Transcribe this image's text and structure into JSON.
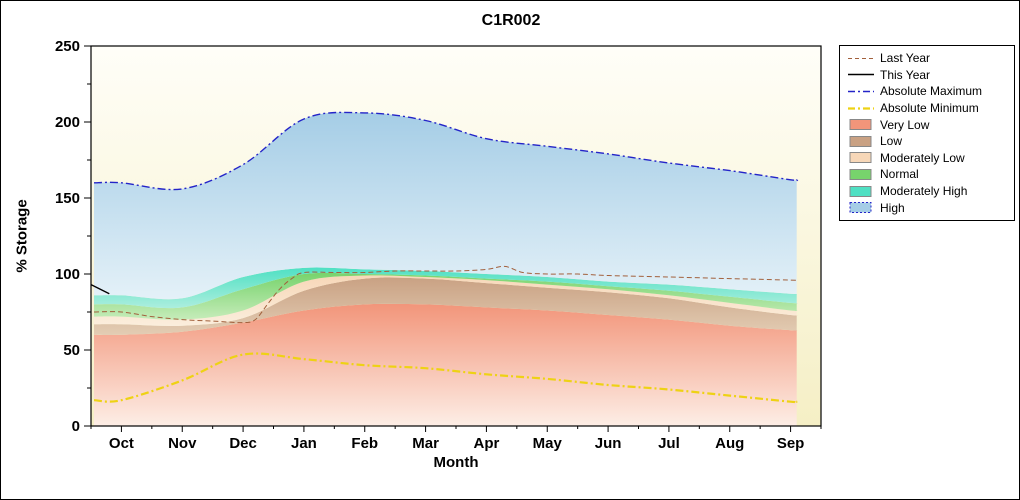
{
  "chart_data": {
    "type": "area",
    "title": "C1R002",
    "xlabel": "Month",
    "ylabel": "% Storage",
    "ylim": [
      0,
      250
    ],
    "yticks": [
      0,
      50,
      100,
      150,
      200,
      250
    ],
    "categories": [
      "Oct",
      "Nov",
      "Dec",
      "Jan",
      "Feb",
      "Mar",
      "Apr",
      "May",
      "Jun",
      "Jul",
      "Aug",
      "Sep"
    ],
    "background": {
      "plot_top": "#fffef8",
      "plot_bottom": "#f5efc5"
    },
    "bands": [
      {
        "name": "Very Low",
        "color": "#f2957a",
        "color2": "#fdeee6",
        "top": [
          60,
          62,
          68,
          76,
          80,
          80,
          78,
          76,
          73,
          70,
          66,
          63
        ]
      },
      {
        "name": "Low",
        "color": "#c9a183",
        "color2": "#e3cdb4",
        "top": [
          67,
          66,
          71,
          89,
          97,
          97,
          94,
          91,
          88,
          84,
          78,
          73
        ]
      },
      {
        "name": "Moderately Low",
        "color": "#f7d7b8",
        "color2": "#fbeedd",
        "top": [
          72,
          70,
          76,
          95,
          99,
          98,
          96,
          93,
          90,
          86,
          81,
          76
        ]
      },
      {
        "name": "Normal",
        "color": "#77d36c",
        "color2": "#c6ecba",
        "top": [
          80,
          78,
          90,
          100,
          100,
          99,
          97,
          95,
          92,
          89,
          85,
          81
        ]
      },
      {
        "name": "Moderately High",
        "color": "#4fe0c3",
        "color2": "#aceede",
        "top": [
          86,
          84,
          98,
          104,
          103,
          102,
          100,
          98,
          95,
          93,
          90,
          87
        ]
      },
      {
        "name": "High",
        "color": "#a5cde6",
        "color2": "#e4f1f8",
        "top": [
          160,
          156,
          172,
          202,
          206,
          201,
          189,
          184,
          179,
          173,
          168,
          162
        ]
      }
    ],
    "lines": [
      {
        "name": "Last Year",
        "color": "#a2603c",
        "dash": "5 3",
        "width": 1,
        "x": [
          -0.45,
          0,
          0.5,
          1,
          1.5,
          2,
          2.2,
          2.4,
          2.6,
          2.8,
          3,
          3.5,
          4,
          4.5,
          5,
          5.5,
          6,
          6.3,
          6.6,
          7,
          7.5,
          8,
          9,
          10,
          11,
          11.05
        ],
        "values": [
          75,
          75,
          72,
          70,
          69,
          68,
          70,
          80,
          90,
          97,
          101,
          101,
          101,
          102,
          102,
          102,
          103,
          105,
          101,
          100,
          100,
          99,
          98,
          97,
          96,
          96
        ]
      },
      {
        "name": "This Year",
        "color": "#000000",
        "dash": "",
        "width": 1.4,
        "x": [
          -0.5,
          -0.2
        ],
        "values": [
          93,
          87
        ]
      },
      {
        "name": "Absolute Maximum",
        "color": "#2424c8",
        "dash": "8 3 2 3",
        "width": 1.4,
        "x": [
          -0.45,
          0,
          1,
          2,
          3,
          4,
          5,
          6,
          7,
          8,
          9,
          10,
          11,
          11.1
        ],
        "values": [
          160,
          160,
          156,
          172,
          202,
          206,
          201,
          189,
          184,
          179,
          173,
          168,
          162,
          162
        ]
      },
      {
        "name": "Absolute Minimum",
        "color": "#eed214",
        "dash": "8 3 2 3",
        "width": 2.2,
        "x": [
          -0.45,
          0,
          1,
          2,
          3,
          4,
          5,
          6,
          7,
          8,
          9,
          10,
          11,
          11.1
        ],
        "values": [
          17,
          17,
          30,
          47,
          44,
          40,
          38,
          34,
          31,
          27,
          24,
          20,
          16,
          16
        ]
      }
    ],
    "legend": [
      {
        "label": "Last Year",
        "type": "line",
        "color": "#a2603c",
        "dash": "4 3",
        "width": 1
      },
      {
        "label": "This Year",
        "type": "line",
        "color": "#000000",
        "dash": "",
        "width": 1.4
      },
      {
        "label": "Absolute Maximum",
        "type": "line",
        "color": "#2424c8",
        "dash": "7 3 2 3",
        "width": 1.4
      },
      {
        "label": "Absolute Minimum",
        "type": "line",
        "color": "#eed214",
        "dash": "7 3 2 3",
        "width": 2.2
      },
      {
        "label": "Very Low",
        "type": "box",
        "color": "#f2957a"
      },
      {
        "label": "Low",
        "type": "box",
        "color": "#c9a183"
      },
      {
        "label": "Moderately Low",
        "type": "box",
        "color": "#f7d7b8"
      },
      {
        "label": "Normal",
        "type": "box",
        "color": "#77d36c"
      },
      {
        "label": "Moderately High",
        "type": "box",
        "color": "#4fe0c3"
      },
      {
        "label": "High",
        "type": "box",
        "color": "#a5cde6",
        "border": "#2424c8",
        "border_dash": "2 2"
      }
    ]
  }
}
